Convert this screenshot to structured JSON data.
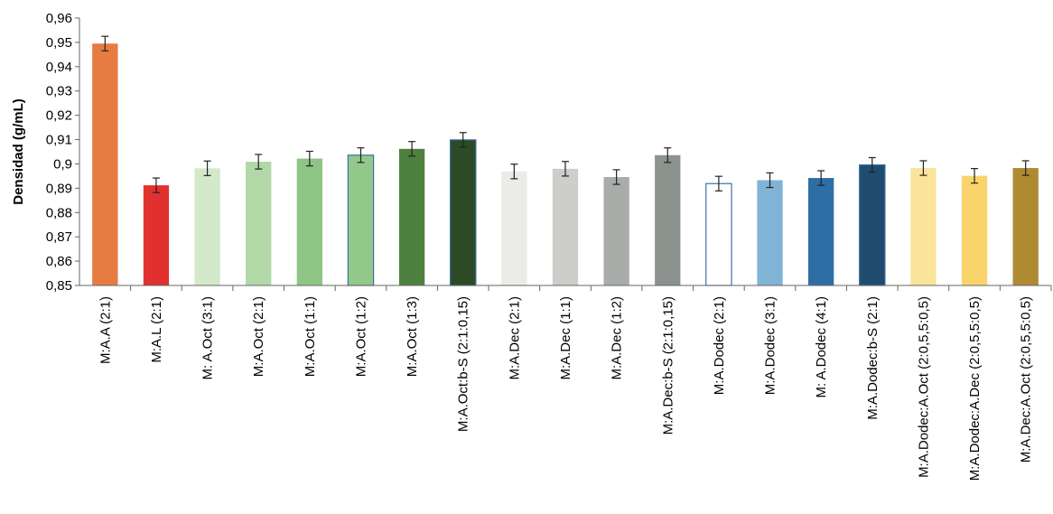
{
  "chart_data": {
    "type": "bar",
    "title": "",
    "xlabel": "",
    "ylabel": "Densidad (g/mL)",
    "ylim": [
      0.85,
      0.96
    ],
    "yticks": [
      "0,85",
      "0,86",
      "0,87",
      "0,88",
      "0,89",
      "0,9",
      "0,91",
      "0,92",
      "0,93",
      "0,94",
      "0,95",
      "0,96"
    ],
    "grid": false,
    "categories": [
      "M:A.A (2:1)",
      "M:A.L (2:1)",
      "M: A.Oct (3:1)",
      "M:A.Oct (2:1)",
      "M:A.Oct (1:1)",
      "M:A.Oct (1:2)",
      "M:A.Oct (1:3)",
      "M:A.Oct:b-S (2:1:0,15)",
      "M:A.Dec (2:1)",
      "M:A.Dec (1:1)",
      "M:A.Dec (1:2)",
      "M:A.Dec:b-S (2:1:0,15)",
      "M:A.Dodec (2:1)",
      "M:A.Dodec (3:1)",
      "M: A.Dodec (4:1)",
      "M:A.Dodec:b-S (2:1)",
      "M:A.Dodec:A.Oct (2:0,5,5:0,5)",
      "M:A.Dodec:A.Dec (2:0,5,5:0,5)",
      "M:A.Dec:A.Oct (2:0,5,5:0,5)"
    ],
    "values": [
      0.9495,
      0.8912,
      0.8982,
      0.9009,
      0.9022,
      0.9036,
      0.9062,
      0.9099,
      0.8969,
      0.898,
      0.8946,
      0.9036,
      0.8919,
      0.8933,
      0.8942,
      0.8996,
      0.8983,
      0.8951,
      0.8983
    ],
    "errors": [
      0.003,
      0.003,
      0.003,
      0.003,
      0.003,
      0.003,
      0.003,
      0.003,
      0.003,
      0.003,
      0.003,
      0.003,
      0.003,
      0.003,
      0.003,
      0.003,
      0.003,
      0.003,
      0.003
    ],
    "colors": [
      "#e67c40",
      "#e0312f",
      "#d3e9c9",
      "#b3d8a8",
      "#8fc584",
      "#92c98a",
      "#4e813f",
      "#2b4a25",
      "#ebebe8",
      "#cdceca",
      "#a9adaa",
      "#8c928d",
      "#ffffff",
      "#7fb4d6",
      "#2f6ea5",
      "#204d6f",
      "#fae49a",
      "#f8d46a",
      "#b08a32"
    ],
    "outlines": [
      null,
      null,
      null,
      null,
      null,
      "#3d6fa8",
      null,
      "#3d6fa8",
      null,
      null,
      null,
      null,
      "#3d6fa8",
      null,
      null,
      "#3d6fa8",
      null,
      null,
      null
    ],
    "axis_color": "#666666"
  }
}
